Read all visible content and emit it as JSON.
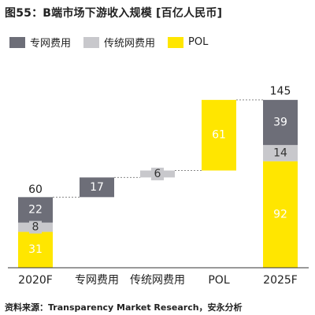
{
  "title": "图55：B端市场下游收入规模 [百亿人民币]",
  "source": "资料来源：Transparency Market Research，安永分析",
  "colors": {
    "专网费用": "#6d6e78",
    "传统网费用": "#c8c8cc",
    "POL": "#ffe600",
    "label_light": "#ffffff",
    "label_dark": "#333333"
  },
  "legend": [
    "专网费用",
    "传统网费用",
    "POL"
  ],
  "chart_data": {
    "type": "bar",
    "subtype": "waterfall",
    "title": "图55：B端市场下游收入规模 [百亿人民币]",
    "unit": "百亿人民币",
    "categories": [
      "2020F",
      "专网费用",
      "传统网费用",
      "POL",
      "2025F"
    ],
    "legend": [
      "专网费用",
      "传统网费用",
      "POL"
    ],
    "start": {
      "category": "2020F",
      "total": 60,
      "stack": [
        {
          "name": "POL",
          "value": 31
        },
        {
          "name": "传统网费用",
          "value": 8
        },
        {
          "name": "专网费用",
          "value": 22
        }
      ]
    },
    "increments": [
      {
        "category": "专网费用",
        "name": "专网费用",
        "value": 17
      },
      {
        "category": "传统网费用",
        "name": "传统网费用",
        "value": 6
      },
      {
        "category": "POL",
        "name": "POL",
        "value": 61
      }
    ],
    "end": {
      "category": "2025F",
      "total": 145,
      "stack": [
        {
          "name": "POL",
          "value": 92
        },
        {
          "name": "传统网费用",
          "value": 14
        },
        {
          "name": "专网费用",
          "value": 39
        }
      ]
    },
    "ylim": [
      0,
      150
    ],
    "grid": false,
    "legend_position": "top-left"
  }
}
